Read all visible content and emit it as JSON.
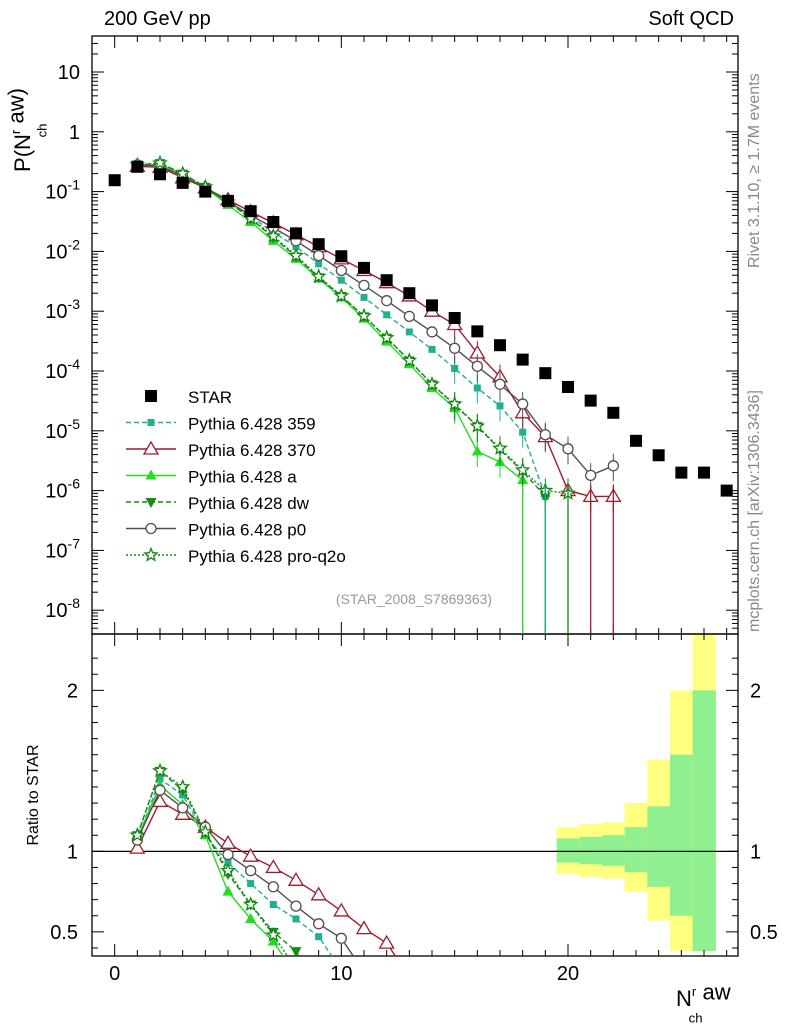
{
  "header": {
    "left": "200 GeV pp",
    "right": "Soft QCD"
  },
  "side_labels": {
    "rivet": "Rivet 3.1.10, ≥ 1.7M events",
    "mcplots": "mcplots.cern.ch [arXiv:1306.3436]"
  },
  "analysis_tag": "(STAR_2008_S7869363)",
  "axes": {
    "ylabel_main": "P(N^r_ch aw)",
    "ylabel_ratio": "Ratio to STAR",
    "xlabel": "N^r_ch aw"
  },
  "chart_data": {
    "type": "scatter",
    "x_range": [
      -1,
      27.5
    ],
    "main": {
      "y_log": true,
      "y_range": [
        4e-09,
        40
      ],
      "y_ticks": [
        "10^-8",
        "10^-7",
        "10^-6",
        "10^-5",
        "10^-4",
        "10^-3",
        "10^-2",
        "10^-1",
        "1",
        "10"
      ],
      "x_ticks": [
        0,
        10,
        20
      ]
    },
    "ratio": {
      "y_range": [
        0.35,
        2.35
      ],
      "y_ticks": [
        0.5,
        1,
        2
      ],
      "reference_line": 1,
      "bands": [
        {
          "x": 20,
          "outer": [
            0.86,
            1.15
          ],
          "inner": [
            0.93,
            1.08
          ]
        },
        {
          "x": 21,
          "outer": [
            0.84,
            1.17
          ],
          "inner": [
            0.92,
            1.09
          ]
        },
        {
          "x": 22,
          "outer": [
            0.83,
            1.18
          ],
          "inner": [
            0.91,
            1.1
          ]
        },
        {
          "x": 23,
          "outer": [
            0.75,
            1.3
          ],
          "inner": [
            0.87,
            1.15
          ]
        },
        {
          "x": 24,
          "outer": [
            0.57,
            1.57
          ],
          "inner": [
            0.78,
            1.28
          ]
        },
        {
          "x": 25,
          "outer": [
            0.38,
            2.0
          ],
          "inner": [
            0.6,
            1.6
          ]
        },
        {
          "x": 26,
          "outer": [
            0.38,
            2.35
          ],
          "inner": [
            0.38,
            2.0
          ]
        }
      ]
    },
    "series": [
      {
        "name": "STAR",
        "color": "#000000",
        "marker": "square",
        "line": "none",
        "x": [
          0,
          1,
          2,
          3,
          4,
          5,
          6,
          7,
          8,
          9,
          10,
          11,
          12,
          13,
          14,
          15,
          16,
          17,
          18,
          19,
          20,
          21,
          22,
          23,
          24,
          25,
          26,
          27
        ],
        "y": [
          0.155,
          0.26,
          0.195,
          0.14,
          0.1,
          0.07,
          0.047,
          0.031,
          0.02,
          0.0132,
          0.0083,
          0.0053,
          0.0033,
          0.002,
          0.00125,
          0.00077,
          0.00046,
          0.00027,
          0.000155,
          9.2e-05,
          5.4e-05,
          3.2e-05,
          2e-05,
          6.8e-06,
          3.9e-06,
          2e-06,
          2e-06,
          1e-06
        ],
        "ratio": []
      },
      {
        "name": "Pythia 6.428 359",
        "color": "#20b090",
        "marker": "square-small",
        "line": "dashed",
        "x": [
          1,
          2,
          3,
          4,
          5,
          6,
          7,
          8,
          9,
          10,
          11,
          12,
          13,
          14,
          15,
          16,
          17,
          18,
          19
        ],
        "y": [
          0.275,
          0.28,
          0.19,
          0.11,
          0.065,
          0.038,
          0.021,
          0.012,
          0.0062,
          0.0033,
          0.0017,
          0.00087,
          0.00045,
          0.00023,
          0.00011,
          5.2e-05,
          2.6e-05,
          9.5e-06,
          8e-07
        ],
        "ratio": [
          1.07,
          1.45,
          1.35,
          1.1,
          0.93,
          0.8,
          0.67,
          0.58,
          0.47
        ]
      },
      {
        "name": "Pythia 6.428 370",
        "color": "#a01c2c",
        "marker": "triangle-open",
        "line": "solid",
        "x": [
          1,
          2,
          3,
          4,
          5,
          6,
          7,
          8,
          9,
          10,
          11,
          12,
          13,
          14,
          15,
          16,
          17,
          18,
          19,
          20,
          21,
          22
        ],
        "y": [
          0.265,
          0.255,
          0.17,
          0.115,
          0.073,
          0.046,
          0.03,
          0.019,
          0.012,
          0.0075,
          0.0048,
          0.003,
          0.0018,
          0.001,
          0.0006,
          0.0002,
          8e-05,
          2e-05,
          8e-06,
          1e-06,
          8e-07,
          8e-07
        ],
        "ratio": [
          1.02,
          1.31,
          1.23,
          1.15,
          1.05,
          0.97,
          0.9,
          0.82,
          0.73,
          0.63,
          0.52,
          0.43
        ]
      },
      {
        "name": "Pythia 6.428 a",
        "color": "#22dd22",
        "marker": "triangle",
        "line": "solid",
        "x": [
          1,
          2,
          3,
          4,
          5,
          6,
          7,
          8,
          9,
          10,
          11,
          12,
          13,
          14,
          15,
          16,
          17,
          18
        ],
        "y": [
          0.28,
          0.285,
          0.195,
          0.115,
          0.06,
          0.031,
          0.015,
          0.0075,
          0.0035,
          0.0017,
          0.00075,
          0.00031,
          0.00013,
          5.2e-05,
          2.4e-05,
          4.5e-06,
          3e-06,
          1.5e-06
        ],
        "ratio": [
          1.08,
          1.41,
          1.29,
          1.1,
          0.75,
          0.58,
          0.44
        ]
      },
      {
        "name": "Pythia 6.428 dw",
        "color": "#109010",
        "marker": "triangle-down",
        "line": "dashed",
        "x": [
          1,
          2,
          3,
          4,
          5,
          6,
          7,
          8,
          9,
          10,
          11,
          12,
          13,
          14,
          15,
          16,
          17,
          18,
          19
        ],
        "y": [
          0.28,
          0.3,
          0.2,
          0.12,
          0.068,
          0.035,
          0.017,
          0.0082,
          0.0037,
          0.0018,
          0.00082,
          0.00036,
          0.00015,
          6e-05,
          2.7e-05,
          1.2e-05,
          4.8e-06,
          2.1e-06,
          8e-07
        ],
        "ratio": [
          1.1,
          1.5,
          1.38,
          1.12,
          0.86,
          0.67,
          0.5,
          0.38
        ]
      },
      {
        "name": "Pythia 6.428 p0",
        "color": "#505050",
        "marker": "circle-open",
        "line": "solid",
        "x": [
          1,
          2,
          3,
          4,
          5,
          6,
          7,
          8,
          9,
          10,
          11,
          12,
          13,
          14,
          15,
          16,
          17,
          18,
          19,
          20,
          21,
          22
        ],
        "y": [
          0.28,
          0.27,
          0.18,
          0.115,
          0.068,
          0.04,
          0.025,
          0.015,
          0.0085,
          0.0048,
          0.0027,
          0.0015,
          0.00082,
          0.00045,
          0.00024,
          0.00012,
          6e-05,
          2.8e-05,
          8.6e-06,
          5e-06,
          1.8e-06,
          2.6e-06
        ],
        "ratio": [
          1.07,
          1.38,
          1.27,
          1.15,
          0.98,
          0.88,
          0.78,
          0.66,
          0.55,
          0.46
        ]
      },
      {
        "name": "Pythia 6.428 pro-q2o",
        "color": "#108810",
        "marker": "star",
        "line": "dotted",
        "x": [
          1,
          2,
          3,
          4,
          5,
          6,
          7,
          8,
          9,
          10,
          11,
          12,
          13,
          14,
          15,
          16,
          17,
          18,
          19,
          20
        ],
        "y": [
          0.28,
          0.3,
          0.2,
          0.12,
          0.067,
          0.036,
          0.018,
          0.0085,
          0.0038,
          0.0018,
          0.00083,
          0.00036,
          0.00015,
          6e-05,
          2.8e-05,
          1.2e-05,
          5.1e-06,
          2.2e-06,
          1e-06,
          9e-07
        ],
        "ratio": [
          1.1,
          1.5,
          1.4,
          1.12,
          0.88,
          0.67,
          0.48
        ]
      }
    ]
  }
}
